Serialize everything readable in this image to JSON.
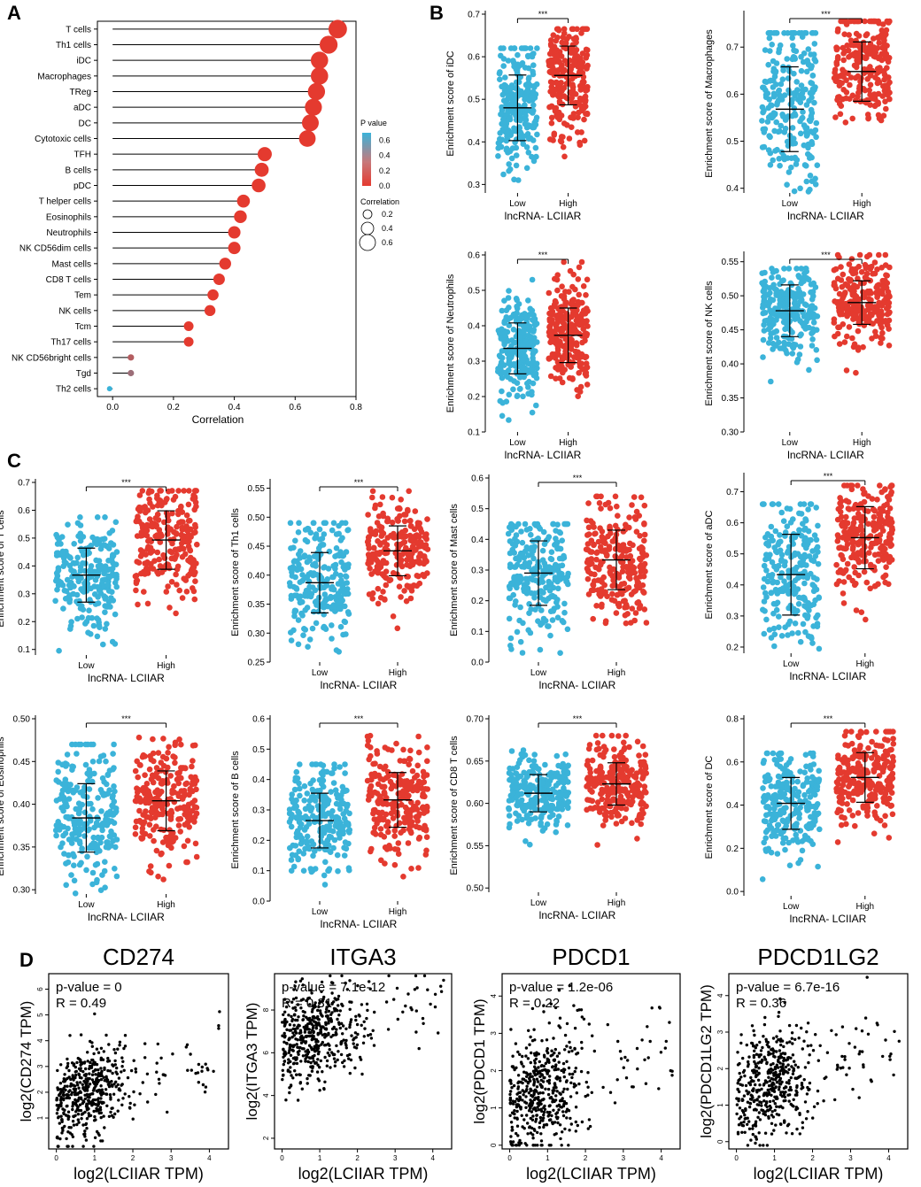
{
  "colors": {
    "low": "#3bb3d9",
    "high": "#e43a2f",
    "axis": "#000000"
  },
  "panel_labels": [
    "A",
    "B",
    "C",
    "D"
  ],
  "chart_data": [
    {
      "type": "scatter",
      "id": "A",
      "title": "",
      "subtype": "lollipop",
      "xlabel": "Correlation",
      "xlim": [
        -0.05,
        0.8
      ],
      "xticks": [
        0.0,
        0.2,
        0.4,
        0.6,
        0.8
      ],
      "xtick_labels": [
        "0.0",
        "0.2",
        "0.4",
        "0.6",
        "0.8"
      ],
      "categories": [
        "T cells",
        "Th1 cells",
        "iDC",
        "Macrophages",
        "TReg",
        "aDC",
        "DC",
        "Cytotoxic cells",
        "TFH",
        "B cells",
        "pDC",
        "T helper cells",
        "Eosinophils",
        "Neutrophils",
        "NK CD56dim cells",
        "Mast cells",
        "CD8 T cells",
        "Tem",
        "NK cells",
        "Tcm",
        "Th17 cells",
        "NK CD56bright cells",
        "Tgd",
        "Th2 cells"
      ],
      "correlation": [
        0.74,
        0.71,
        0.68,
        0.68,
        0.67,
        0.66,
        0.65,
        0.64,
        0.5,
        0.49,
        0.48,
        0.43,
        0.42,
        0.4,
        0.4,
        0.37,
        0.35,
        0.33,
        0.32,
        0.25,
        0.25,
        0.06,
        0.06,
        -0.01
      ],
      "p_value": [
        0,
        0,
        0,
        0,
        0,
        0,
        0,
        0,
        0,
        0,
        0,
        0,
        0,
        0,
        0,
        0,
        0,
        0,
        0,
        0,
        0,
        0.2,
        0.3,
        0.7
      ],
      "legend": {
        "p_title": "P value",
        "p_ticks": [
          "0.6",
          "0.4",
          "0.2",
          "0.0"
        ],
        "p_tick_values": [
          0.6,
          0.4,
          0.2,
          0.0
        ],
        "size_title": "Correlation",
        "size_ticks": [
          "0.2",
          "0.4",
          "0.6"
        ],
        "size_tick_values": [
          0.2,
          0.4,
          0.6
        ]
      }
    },
    {
      "type": "scatter",
      "id": "B1",
      "subtype": "box-strip",
      "ylabel": "Enrichment score of iDC",
      "xlabel": "lncRNA- LCIIAR",
      "categories": [
        "Low",
        "High"
      ],
      "ylim": [
        0.28,
        0.7
      ],
      "yticks": [
        0.3,
        0.4,
        0.5,
        0.6,
        0.7
      ],
      "ytick_labels": [
        "0.3",
        "0.4",
        "0.5",
        "0.6",
        "0.7"
      ],
      "means": [
        0.48,
        0.556
      ],
      "sd": [
        0.077,
        0.069
      ],
      "ranges": [
        [
          0.29,
          0.62
        ],
        [
          0.32,
          0.665
        ]
      ],
      "significance": "***"
    },
    {
      "type": "scatter",
      "id": "B2",
      "subtype": "box-strip",
      "ylabel": "Enrichment score of Macrophages",
      "xlabel": "lncRNA- LCIIAR",
      "categories": [
        "Low",
        "High"
      ],
      "ylim": [
        0.39,
        0.77
      ],
      "yticks": [
        0.4,
        0.5,
        0.6,
        0.7
      ],
      "ytick_labels": [
        "0.4",
        "0.5",
        "0.6",
        "0.7"
      ],
      "means": [
        0.568,
        0.648
      ],
      "sd": [
        0.09,
        0.063
      ],
      "ranges": [
        [
          0.39,
          0.73
        ],
        [
          0.535,
          0.755
        ]
      ],
      "significance": "***"
    },
    {
      "type": "scatter",
      "id": "B3",
      "subtype": "box-strip",
      "ylabel": "Enrichment score of Neutrophils",
      "xlabel": "lncRNA- LCIIAR",
      "categories": [
        "Low",
        "High"
      ],
      "ylim": [
        0.1,
        0.6
      ],
      "yticks": [
        0.1,
        0.2,
        0.3,
        0.4,
        0.5,
        0.6
      ],
      "ytick_labels": [
        "0.1",
        "0.2",
        "0.3",
        "0.4",
        "0.5",
        "0.6"
      ],
      "means": [
        0.336,
        0.373
      ],
      "sd": [
        0.072,
        0.077
      ],
      "ranges": [
        [
          0.13,
          0.53
        ],
        [
          0.19,
          0.58
        ]
      ],
      "significance": "***"
    },
    {
      "type": "scatter",
      "id": "B4",
      "subtype": "box-strip",
      "ylabel": "Enrichment score of NK cells",
      "xlabel": "lncRNA- LCIIAR",
      "categories": [
        "Low",
        "High"
      ],
      "ylim": [
        0.3,
        0.56
      ],
      "yticks": [
        0.3,
        0.35,
        0.4,
        0.45,
        0.5,
        0.55
      ],
      "ytick_labels": [
        "0.30",
        "0.35",
        "0.40",
        "0.45",
        "0.50",
        "0.55"
      ],
      "means": [
        0.478,
        0.49
      ],
      "sd": [
        0.038,
        0.032
      ],
      "ranges": [
        [
          0.31,
          0.54
        ],
        [
          0.335,
          0.56
        ]
      ],
      "significance": "***"
    },
    {
      "type": "scatter",
      "id": "C1",
      "subtype": "box-strip",
      "ylabel": "Enrichment score of T cells",
      "xlabel": "lncRNA- LCIIAR",
      "categories": [
        "Low",
        "High"
      ],
      "ylim": [
        0.08,
        0.7
      ],
      "yticks": [
        0.1,
        0.2,
        0.3,
        0.4,
        0.5,
        0.6,
        0.7
      ],
      "ytick_labels": [
        "0.1",
        "0.2",
        "0.3",
        "0.4",
        "0.5",
        "0.6",
        "0.7"
      ],
      "means": [
        0.367,
        0.493
      ],
      "sd": [
        0.097,
        0.105
      ],
      "ranges": [
        [
          0.08,
          0.575
        ],
        [
          0.21,
          0.67
        ]
      ],
      "significance": "***"
    },
    {
      "type": "scatter",
      "id": "C2",
      "subtype": "box-strip",
      "ylabel": "Enrichment score of Th1 cells",
      "xlabel": "lncRNA- LCIIAR",
      "categories": [
        "Low",
        "High"
      ],
      "ylim": [
        0.25,
        0.56
      ],
      "yticks": [
        0.25,
        0.3,
        0.35,
        0.4,
        0.45,
        0.5,
        0.55
      ],
      "ytick_labels": [
        "0.25",
        "0.30",
        "0.35",
        "0.40",
        "0.45",
        "0.50",
        "0.55"
      ],
      "means": [
        0.387,
        0.442
      ],
      "sd": [
        0.052,
        0.043
      ],
      "ranges": [
        [
          0.26,
          0.49
        ],
        [
          0.3,
          0.545
        ]
      ],
      "significance": "***"
    },
    {
      "type": "scatter",
      "id": "C3",
      "subtype": "box-strip",
      "ylabel": "Enrichment score of Mast cells",
      "xlabel": "lncRNA- LCIIAR",
      "categories": [
        "Low",
        "High"
      ],
      "ylim": [
        0.0,
        0.6
      ],
      "yticks": [
        0.0,
        0.1,
        0.2,
        0.3,
        0.4,
        0.5,
        0.6
      ],
      "ytick_labels": [
        "0.0",
        "0.1",
        "0.2",
        "0.3",
        "0.4",
        "0.5",
        "0.6"
      ],
      "means": [
        0.29,
        0.333
      ],
      "sd": [
        0.105,
        0.097
      ],
      "ranges": [
        [
          0.02,
          0.45
        ],
        [
          0.1,
          0.54
        ]
      ],
      "significance": "***"
    },
    {
      "type": "scatter",
      "id": "C4",
      "subtype": "box-strip",
      "ylabel": "Enrichment score of aDC",
      "xlabel": "lncRNA- LCIIAR",
      "categories": [
        "Low",
        "High"
      ],
      "ylim": [
        0.18,
        0.75
      ],
      "yticks": [
        0.2,
        0.3,
        0.4,
        0.5,
        0.6,
        0.7
      ],
      "ytick_labels": [
        "0.2",
        "0.3",
        "0.4",
        "0.5",
        "0.6",
        "0.7"
      ],
      "means": [
        0.433,
        0.552
      ],
      "sd": [
        0.13,
        0.1
      ],
      "ranges": [
        [
          0.19,
          0.66
        ],
        [
          0.27,
          0.72
        ]
      ],
      "significance": "***"
    },
    {
      "type": "scatter",
      "id": "C5",
      "subtype": "box-strip",
      "ylabel": "Enrichment score of Eosinophils",
      "xlabel": "lncRNA- LCIIAR",
      "categories": [
        "Low",
        "High"
      ],
      "ylim": [
        0.295,
        0.5
      ],
      "yticks": [
        0.3,
        0.35,
        0.4,
        0.45,
        0.5
      ],
      "ytick_labels": [
        "0.30",
        "0.35",
        "0.40",
        "0.45",
        "0.50"
      ],
      "means": [
        0.384,
        0.404
      ],
      "sd": [
        0.04,
        0.035
      ],
      "ranges": [
        [
          0.295,
          0.47
        ],
        [
          0.303,
          0.478
        ]
      ],
      "significance": "***"
    },
    {
      "type": "scatter",
      "id": "C6",
      "subtype": "box-strip",
      "ylabel": "Enrichment score of B cells",
      "xlabel": "lncRNA- LCIIAR",
      "categories": [
        "Low",
        "High"
      ],
      "ylim": [
        0.0,
        0.6
      ],
      "yticks": [
        0.0,
        0.1,
        0.2,
        0.3,
        0.4,
        0.5,
        0.6
      ],
      "ytick_labels": [
        "0.0",
        "0.1",
        "0.2",
        "0.3",
        "0.4",
        "0.5",
        "0.6"
      ],
      "means": [
        0.265,
        0.333
      ],
      "sd": [
        0.09,
        0.09
      ],
      "ranges": [
        [
          0.05,
          0.45
        ],
        [
          0.05,
          0.555
        ]
      ],
      "significance": "***"
    },
    {
      "type": "scatter",
      "id": "C7",
      "subtype": "box-strip",
      "ylabel": "Enrichment score of CD8 T cells",
      "xlabel": "lncRNA- LCIIAR",
      "categories": [
        "Low",
        "High"
      ],
      "ylim": [
        0.495,
        0.7
      ],
      "yticks": [
        0.5,
        0.55,
        0.6,
        0.65,
        0.7
      ],
      "ytick_labels": [
        "0.50",
        "0.55",
        "0.60",
        "0.65",
        "0.70"
      ],
      "means": [
        0.612,
        0.623
      ],
      "sd": [
        0.022,
        0.025
      ],
      "ranges": [
        [
          0.495,
          0.687
        ],
        [
          0.508,
          0.68
        ]
      ],
      "significance": "***"
    },
    {
      "type": "scatter",
      "id": "C8",
      "subtype": "box-strip",
      "ylabel": "Enrichment score of DC",
      "xlabel": "lncRNA- LCIIAR",
      "categories": [
        "Low",
        "High"
      ],
      "ylim": [
        -0.02,
        0.8
      ],
      "yticks": [
        0.0,
        0.2,
        0.4,
        0.6,
        0.8
      ],
      "ytick_labels": [
        "0.0",
        "0.2",
        "0.4",
        "0.6",
        "0.8"
      ],
      "means": [
        0.408,
        0.528
      ],
      "sd": [
        0.12,
        0.115
      ],
      "ranges": [
        [
          0.0,
          0.64
        ],
        [
          0.14,
          0.74
        ]
      ],
      "significance": "***"
    },
    {
      "type": "scatter",
      "id": "D1",
      "title": "CD274",
      "xlabel": "log2(LCIIAR TPM)",
      "ylabel": "log2(CD274 TPM)",
      "xlim": [
        -0.2,
        4.5
      ],
      "ylim": [
        -0.2,
        6.6
      ],
      "xticks": [
        0,
        1,
        2,
        3,
        4
      ],
      "xtick_labels": [
        "0",
        "1",
        "2",
        "3",
        "4"
      ],
      "yticks": [
        1,
        2,
        3,
        4,
        5,
        6
      ],
      "ytick_labels": [
        "1",
        "2",
        "3",
        "4",
        "5",
        "6"
      ],
      "x_cluster": [
        0.8,
        0.55
      ],
      "y_cluster": [
        2.0,
        0.85
      ],
      "annotation": [
        "p-value = 0",
        "R = 0.49"
      ]
    },
    {
      "type": "scatter",
      "id": "D2",
      "title": "ITGA3",
      "xlabel": "log2(LCIIAR TPM)",
      "ylabel": "log2(ITGA3 TPM)",
      "xlim": [
        -0.2,
        4.5
      ],
      "ylim": [
        1.5,
        9.7
      ],
      "xticks": [
        0,
        1,
        2,
        3,
        4
      ],
      "xtick_labels": [
        "0",
        "1",
        "2",
        "3",
        "4"
      ],
      "yticks": [
        2,
        4,
        6,
        8
      ],
      "ytick_labels": [
        "2",
        "4",
        "6",
        "8"
      ],
      "x_cluster": [
        0.8,
        0.55
      ],
      "y_cluster": [
        6.8,
        1.1
      ],
      "annotation": [
        "p-value = 7.1e-12",
        "R = 0.31"
      ]
    },
    {
      "type": "scatter",
      "id": "D3",
      "title": "PDCD1",
      "xlabel": "log2(LCIIAR TPM)",
      "ylabel": "log2(PDCD1 TPM)",
      "xlim": [
        -0.2,
        4.5
      ],
      "ylim": [
        -0.1,
        4.6
      ],
      "xticks": [
        0,
        1,
        2,
        3,
        4
      ],
      "xtick_labels": [
        "0",
        "1",
        "2",
        "3",
        "4"
      ],
      "yticks": [
        0,
        1,
        2,
        3,
        4
      ],
      "ytick_labels": [
        "0",
        "1",
        "2",
        "3",
        "4"
      ],
      "x_cluster": [
        0.8,
        0.55
      ],
      "y_cluster": [
        1.5,
        0.85
      ],
      "annotation": [
        "p-value = 1.2e-06",
        "R = 0.22"
      ]
    },
    {
      "type": "scatter",
      "id": "D4",
      "title": "PDCD1LG2",
      "xlabel": "log2(LCIIAR TPM)",
      "ylabel": "log2(PDCD1LG2 TPM)",
      "xlim": [
        -0.2,
        4.5
      ],
      "ylim": [
        -0.2,
        4.6
      ],
      "xticks": [
        0,
        1,
        2,
        3,
        4
      ],
      "xtick_labels": [
        "0",
        "1",
        "2",
        "3",
        "4"
      ],
      "yticks": [
        0,
        1,
        2,
        3,
        4
      ],
      "ytick_labels": [
        "0",
        "1",
        "2",
        "3",
        "4"
      ],
      "x_cluster": [
        0.8,
        0.55
      ],
      "y_cluster": [
        1.6,
        0.75
      ],
      "annotation": [
        "p-value = 6.7e-16",
        "R = 0.36"
      ]
    }
  ]
}
